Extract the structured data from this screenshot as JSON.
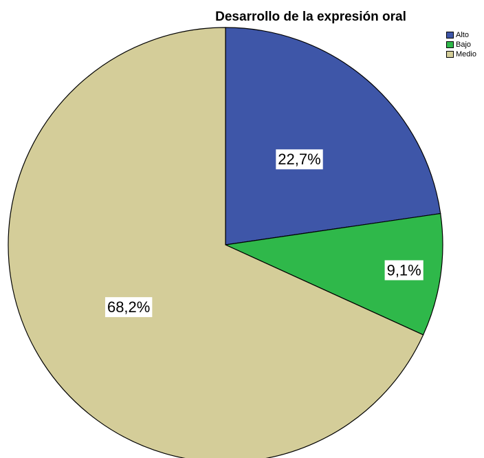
{
  "chart_data": {
    "type": "pie",
    "title": "Desarrollo de la expresión oral",
    "slices": [
      {
        "name": "Alto",
        "value": 22.7,
        "label": "22,7%",
        "color": "#3e56a8"
      },
      {
        "name": "Bajo",
        "value": 9.1,
        "label": "9,1%",
        "color": "#2fb84a"
      },
      {
        "name": "Medio",
        "value": 68.2,
        "label": "68,2%",
        "color": "#d4cd99"
      }
    ],
    "legend": {
      "position": "top-right",
      "items": [
        "Alto",
        "Bajo",
        "Medio"
      ]
    }
  }
}
